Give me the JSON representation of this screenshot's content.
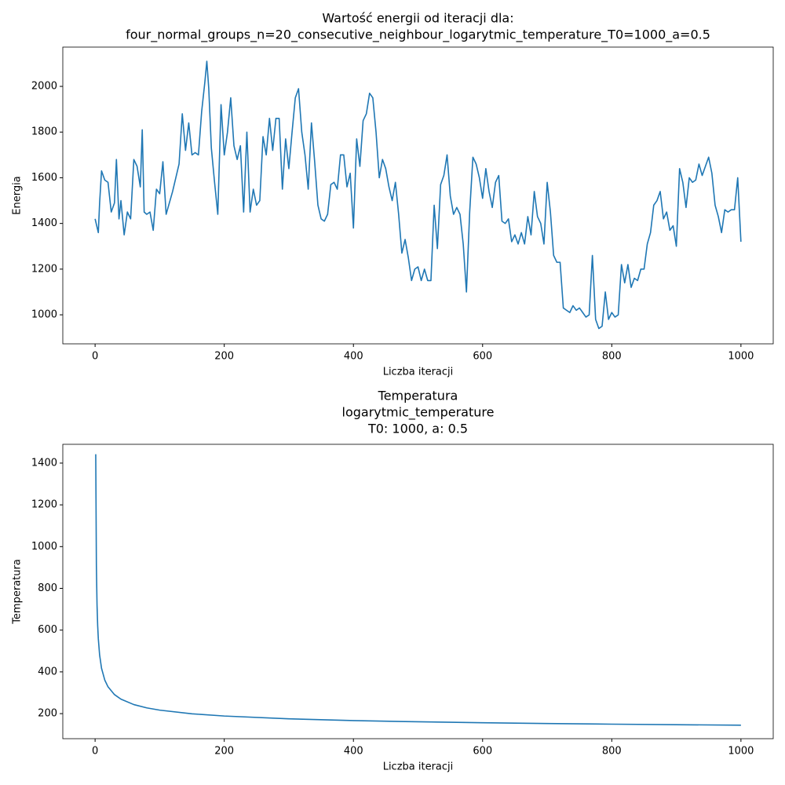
{
  "chart_data": [
    {
      "type": "line",
      "title": [
        "Wartość energii od iteracji dla:",
        "four_normal_groups_n=20_consecutive_neighbour_logarytmic_temperature_T0=1000_a=0.5"
      ],
      "xlabel": "Liczba iteracji",
      "ylabel": "Energia",
      "xlim": [
        -50,
        1050
      ],
      "ylim": [
        873,
        2172
      ],
      "xticks": [
        0,
        200,
        400,
        600,
        800,
        1000
      ],
      "yticks": [
        1000,
        1200,
        1400,
        1600,
        1800,
        2000
      ],
      "series": [
        {
          "color": "#1f77b4",
          "x": [
            0,
            5,
            7,
            10,
            15,
            20,
            25,
            30,
            33,
            37,
            40,
            45,
            50,
            55,
            60,
            65,
            70,
            73,
            76,
            80,
            85,
            90,
            95,
            100,
            105,
            110,
            115,
            120,
            125,
            130,
            135,
            140,
            145,
            150,
            155,
            160,
            165,
            170,
            173,
            176,
            180,
            185,
            190,
            195,
            200,
            205,
            210,
            215,
            220,
            225,
            230,
            235,
            240,
            245,
            250,
            255,
            260,
            265,
            270,
            275,
            280,
            285,
            290,
            295,
            300,
            305,
            310,
            315,
            320,
            325,
            330,
            335,
            340,
            345,
            350,
            355,
            360,
            365,
            370,
            375,
            380,
            385,
            390,
            395,
            400,
            405,
            410,
            415,
            420,
            425,
            430,
            435,
            440,
            445,
            450,
            455,
            460,
            465,
            470,
            475,
            480,
            485,
            490,
            495,
            500,
            505,
            510,
            515,
            520,
            525,
            530,
            535,
            540,
            545,
            550,
            555,
            560,
            565,
            570,
            575,
            580,
            585,
            590,
            595,
            600,
            605,
            610,
            615,
            620,
            625,
            630,
            635,
            640,
            645,
            650,
            655,
            660,
            665,
            670,
            675,
            680,
            685,
            690,
            695,
            700,
            705,
            710,
            715,
            720,
            725,
            730,
            735,
            740,
            745,
            750,
            755,
            760,
            765,
            770,
            775,
            780,
            785,
            790,
            795,
            800,
            805,
            810,
            815,
            820,
            825,
            830,
            835,
            840,
            845,
            850,
            855,
            860,
            865,
            870,
            875,
            880,
            885,
            890,
            895,
            900,
            905,
            910,
            915,
            920,
            925,
            930,
            935,
            940,
            945,
            950,
            955,
            960,
            965,
            970,
            975,
            980,
            985,
            990,
            995,
            1000
          ],
          "values": [
            1420,
            1360,
            1490,
            1630,
            1590,
            1580,
            1450,
            1490,
            1680,
            1420,
            1500,
            1350,
            1450,
            1420,
            1680,
            1650,
            1560,
            1810,
            1450,
            1440,
            1450,
            1370,
            1550,
            1530,
            1670,
            1440,
            1490,
            1540,
            1600,
            1660,
            1880,
            1720,
            1840,
            1700,
            1710,
            1700,
            1890,
            2020,
            2110,
            1990,
            1730,
            1580,
            1440,
            1920,
            1700,
            1800,
            1950,
            1740,
            1680,
            1740,
            1450,
            1800,
            1450,
            1550,
            1480,
            1500,
            1780,
            1700,
            1860,
            1720,
            1860,
            1860,
            1550,
            1770,
            1640,
            1800,
            1950,
            1990,
            1800,
            1700,
            1550,
            1840,
            1670,
            1480,
            1420,
            1410,
            1440,
            1570,
            1580,
            1550,
            1700,
            1700,
            1560,
            1620,
            1380,
            1770,
            1650,
            1850,
            1880,
            1970,
            1950,
            1800,
            1600,
            1680,
            1640,
            1560,
            1500,
            1580,
            1440,
            1270,
            1330,
            1250,
            1150,
            1200,
            1210,
            1150,
            1200,
            1150,
            1150,
            1480,
            1290,
            1570,
            1610,
            1700,
            1520,
            1440,
            1470,
            1440,
            1310,
            1100,
            1450,
            1690,
            1660,
            1600,
            1510,
            1640,
            1540,
            1470,
            1580,
            1610,
            1410,
            1400,
            1420,
            1320,
            1350,
            1310,
            1360,
            1310,
            1430,
            1350,
            1540,
            1430,
            1400,
            1310,
            1580,
            1450,
            1260,
            1230,
            1230,
            1030,
            1020,
            1010,
            1040,
            1020,
            1030,
            1010,
            990,
            1000,
            1260,
            980,
            940,
            950,
            1100,
            980,
            1010,
            990,
            1000,
            1220,
            1140,
            1220,
            1120,
            1160,
            1150,
            1200,
            1200,
            1310,
            1360,
            1480,
            1500,
            1540,
            1420,
            1450,
            1370,
            1390,
            1300,
            1640,
            1580,
            1470,
            1600,
            1580,
            1590,
            1660,
            1610,
            1650,
            1690,
            1620,
            1480,
            1430,
            1360,
            1460,
            1450,
            1460,
            1460,
            1600,
            1320
          ]
        }
      ]
    },
    {
      "type": "line",
      "title": [
        "Temperatura",
        "logarytmic_temperature",
        "T0: 1000, a: 0.5"
      ],
      "xlabel": "Liczba iteracji",
      "ylabel": "Temperatura",
      "xlim": [
        -50,
        1050
      ],
      "ylim": [
        80,
        1490
      ],
      "xticks": [
        0,
        200,
        400,
        600,
        800,
        1000
      ],
      "yticks": [
        200,
        400,
        600,
        800,
        1000,
        1200,
        1400
      ],
      "series": [
        {
          "color": "#1f77b4",
          "x": [
            1,
            2,
            3,
            4,
            5,
            7,
            10,
            15,
            20,
            30,
            40,
            60,
            80,
            100,
            150,
            200,
            300,
            400,
            500,
            600,
            700,
            800,
            900,
            1000
          ],
          "values": [
            1442.7,
            910.2,
            721.3,
            621.3,
            558.1,
            480.9,
            417.0,
            360.7,
            328.5,
            291.2,
            269.3,
            243.3,
            227.6,
            216.7,
            199.3,
            188.6,
            175.2,
            166.8,
            160.9,
            156.3,
            152.6,
            149.6,
            147.0,
            144.7
          ]
        }
      ]
    }
  ]
}
